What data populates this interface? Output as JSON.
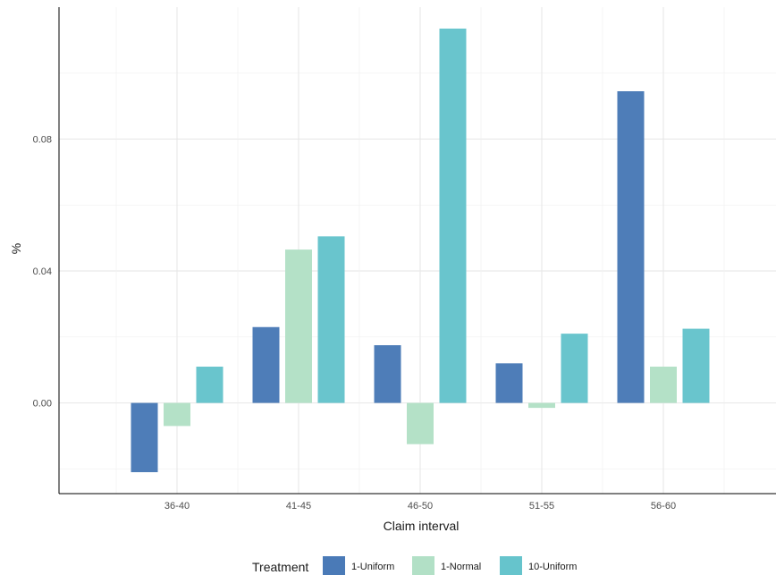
{
  "chart_data": {
    "type": "bar",
    "title": "",
    "xlabel": "Claim interval",
    "ylabel": "%",
    "categories": [
      "36-40",
      "41-45",
      "46-50",
      "51-55",
      "56-60"
    ],
    "series": [
      {
        "name": "1-Uniform",
        "color": "#4a7ab7",
        "values": [
          -0.021,
          0.023,
          0.0175,
          0.012,
          0.0945
        ]
      },
      {
        "name": "1-Normal",
        "color": "#b2e0c6",
        "values": [
          -0.007,
          0.0465,
          -0.0125,
          -0.0015,
          0.011
        ]
      },
      {
        "name": "10-Uniform",
        "color": "#66c4cc",
        "values": [
          0.011,
          0.0505,
          0.1135,
          0.021,
          0.0225
        ]
      }
    ],
    "ylim": [
      -0.0275,
      0.12
    ],
    "yticks": [
      0.0,
      0.04,
      0.08
    ],
    "ytick_labels": [
      "0.00",
      "0.04",
      "0.08"
    ],
    "grid": true,
    "legend": {
      "title": "Treatment",
      "position": "bottom"
    }
  }
}
